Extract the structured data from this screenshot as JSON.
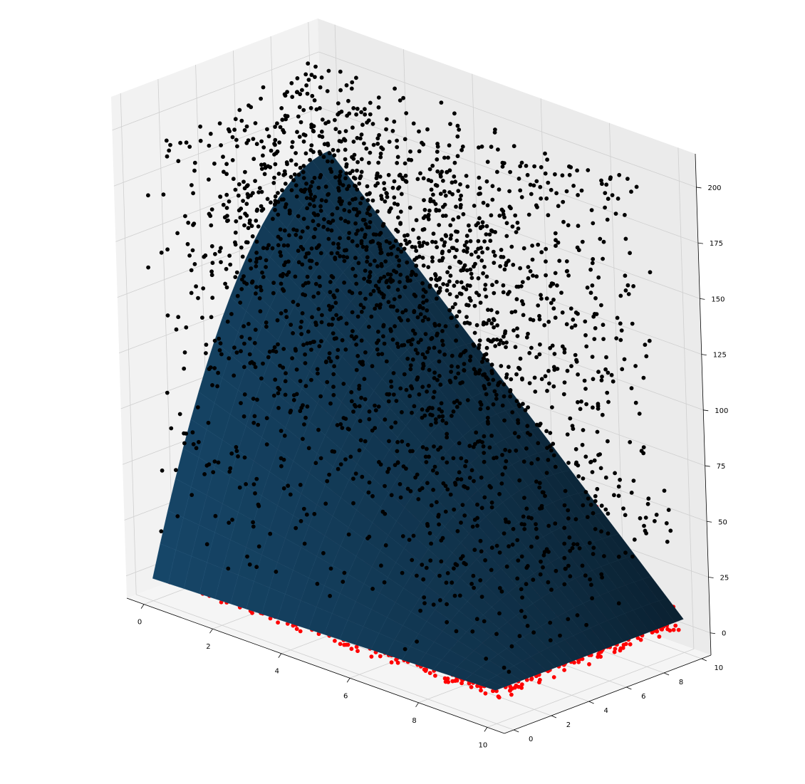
{
  "chart_data": {
    "type": "scatter",
    "projection": "3d",
    "title": "",
    "xlabel": "",
    "ylabel": "",
    "zlabel": "",
    "xlim": [
      -0.5,
      10.5
    ],
    "ylim": [
      -0.5,
      10.5
    ],
    "zlim": [
      -10,
      215
    ],
    "grid": true,
    "x_ticks": [
      "0",
      "2",
      "4",
      "6",
      "8",
      "10"
    ],
    "y_ticks": [
      "0",
      "2",
      "4",
      "6",
      "8",
      "10"
    ],
    "z_ticks": [
      "0",
      "25",
      "50",
      "75",
      "100",
      "125",
      "150",
      "175",
      "200"
    ],
    "surface": {
      "description": "fitted concave quadratic surface over x,y in [0,10]",
      "z_corners": {
        "x0_y0": 0,
        "x10_y0": 5,
        "x0_y10": 160,
        "x10_y10": 5
      },
      "peak": {
        "x": 0,
        "y": 7,
        "z": 175
      },
      "color": "#123c5a"
    },
    "series": [
      {
        "role": "points above surface",
        "color": "#000000",
        "count": 2200,
        "z_range": [
          0,
          205
        ]
      },
      {
        "role": "points below surface",
        "color": "#ff0000",
        "count": 4000,
        "z_range": [
          0,
          150
        ]
      }
    ],
    "colors": {
      "pane_left": "#f2f2f2",
      "pane_right": "#ebebeb",
      "pane_floor": "#f5f5f5",
      "grid": "#cfcfcf"
    }
  }
}
